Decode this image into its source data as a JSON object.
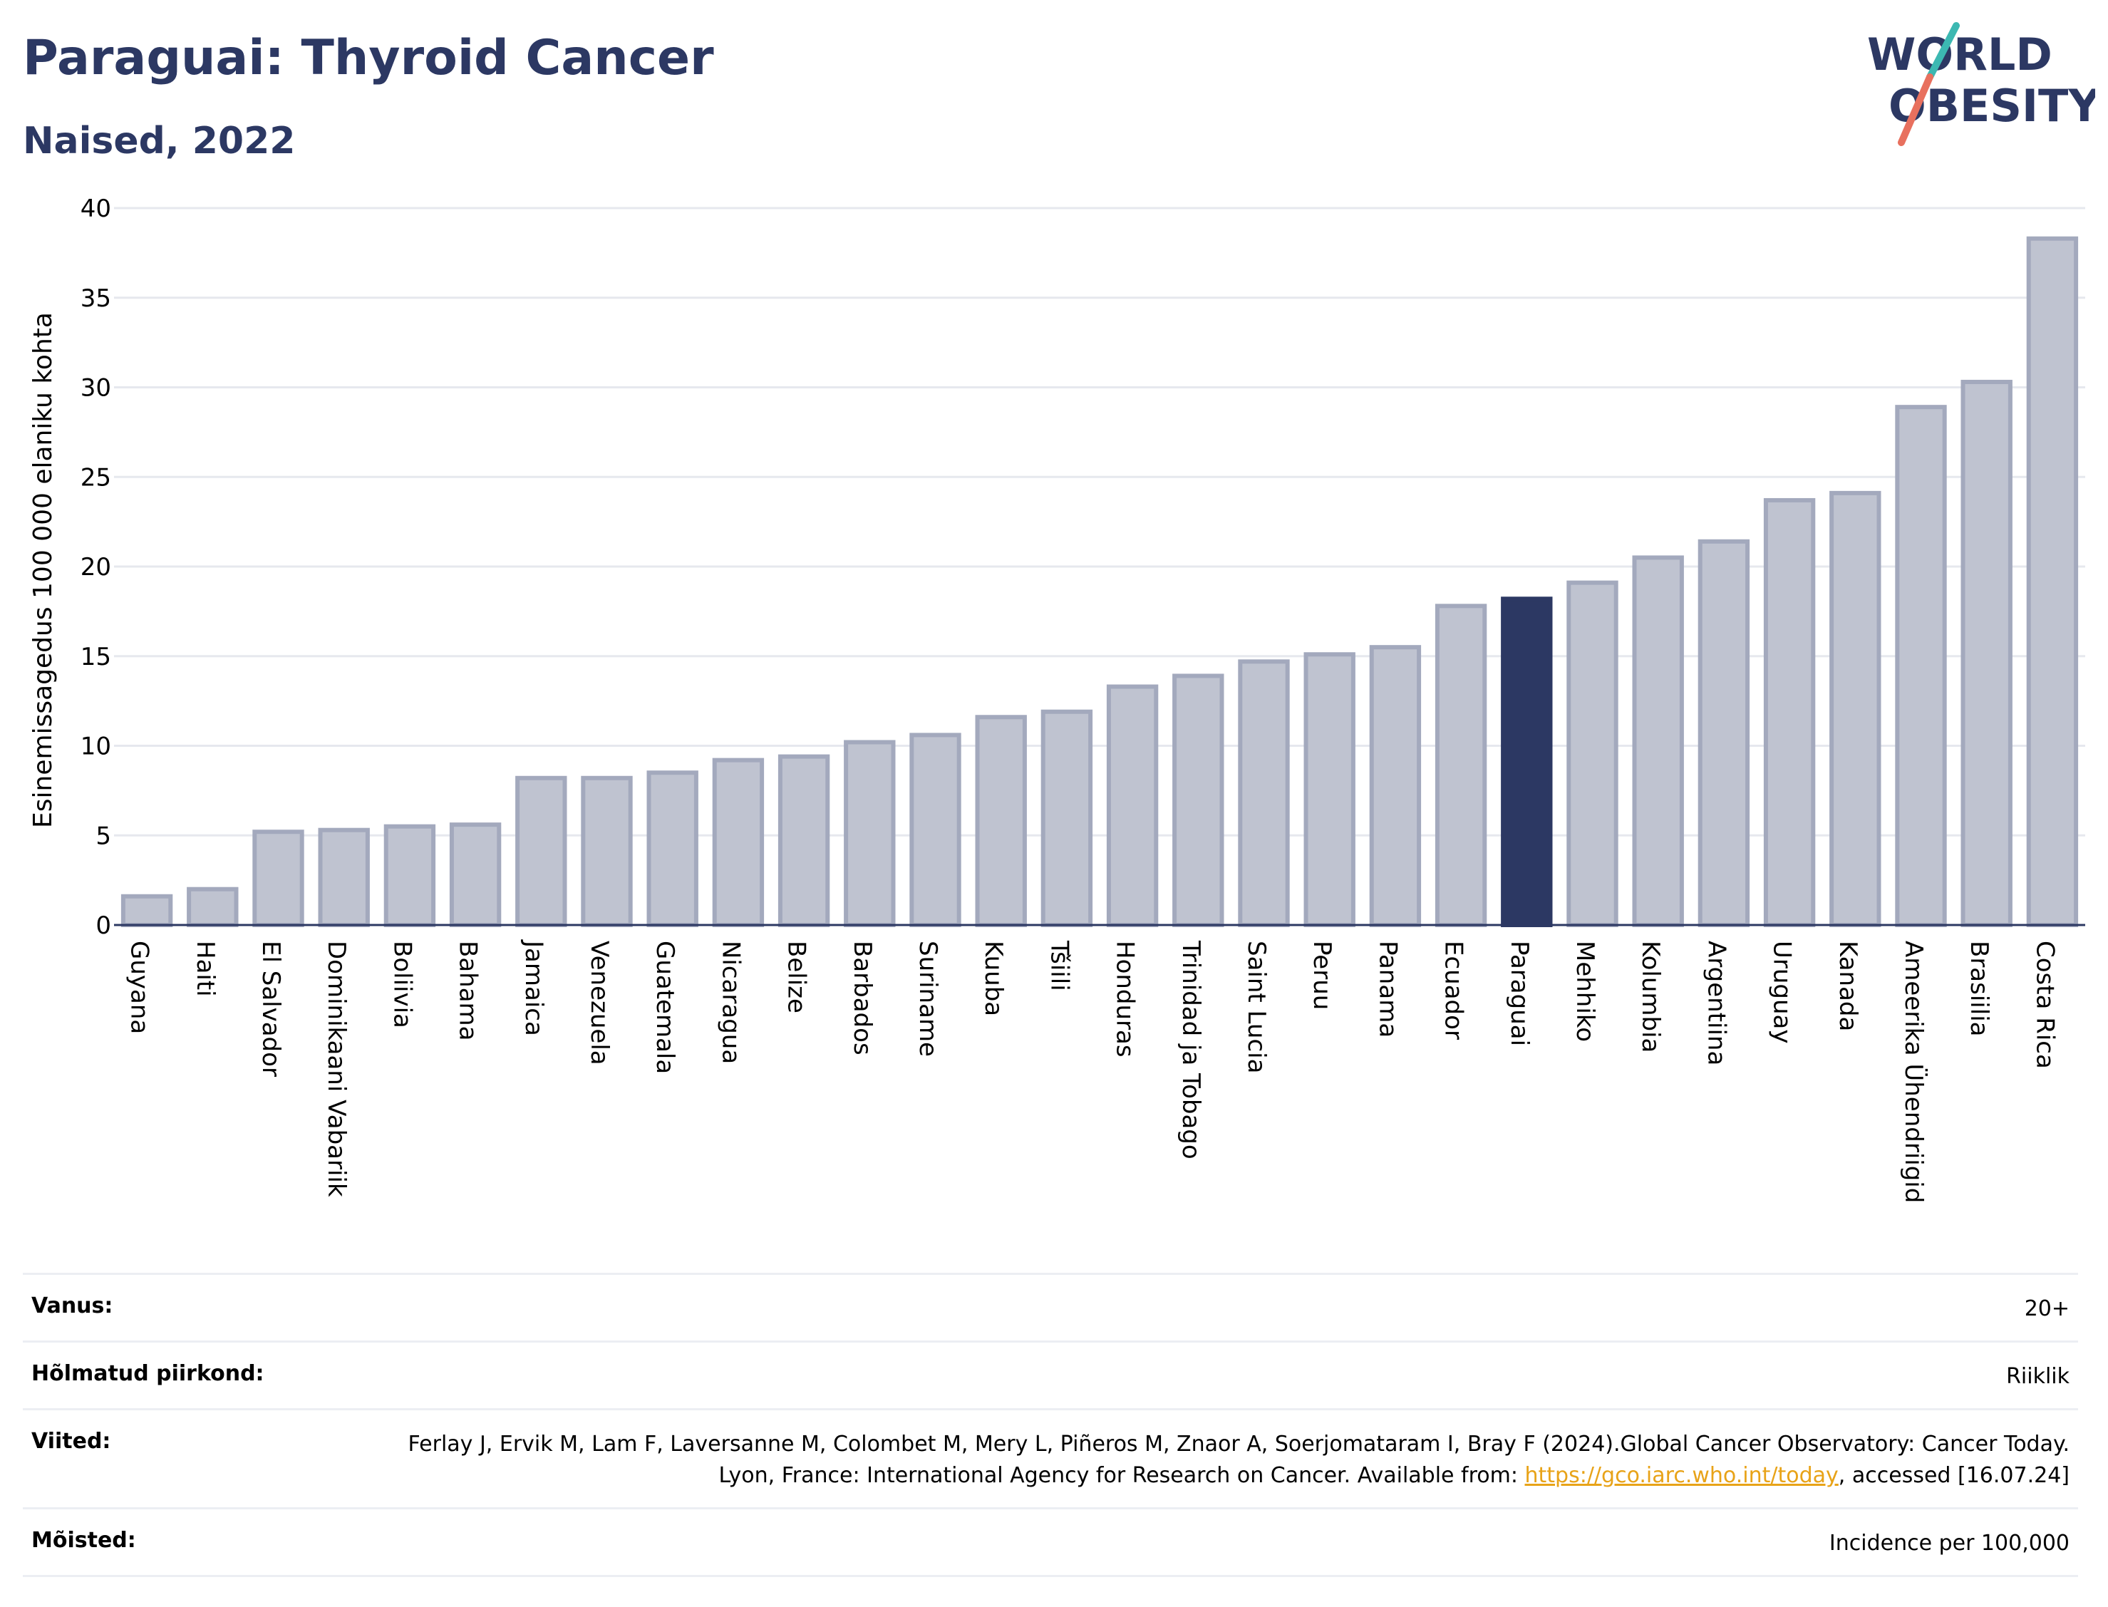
{
  "header": {
    "title": "Paraguai: Thyroid Cancer",
    "subtitle": "Naised, 2022",
    "logo_line1": "WORLD",
    "logo_line2": "OBESITY"
  },
  "colors": {
    "title": "#2c3863",
    "bar_default": "#bfc3d0",
    "bar_default_border": "#a3a9bd",
    "bar_highlight": "#2c3863",
    "link": "#e8a318",
    "logo_teal": "#3cb8b2",
    "logo_coral": "#e8705e"
  },
  "chart_data": {
    "type": "bar",
    "ylabel": "Esinemissagedus 100 000 elaniku kohta",
    "xlabel": "",
    "ylim": [
      0,
      40
    ],
    "yticks": [
      0,
      5,
      10,
      15,
      20,
      25,
      30,
      35,
      40
    ],
    "grid": true,
    "highlight": "Paraguai",
    "categories": [
      "Guyana",
      "Haiti",
      "El Salvador",
      "Dominikaani Vabariik",
      "Boliivia",
      "Bahama",
      "Jamaica",
      "Venezuela",
      "Guatemala",
      "Nicaragua",
      "Belize",
      "Barbados",
      "Suriname",
      "Kuuba",
      "Tšiili",
      "Honduras",
      "Trinidad ja Tobago",
      "Saint Lucia",
      "Peruu",
      "Panama",
      "Ecuador",
      "Paraguai",
      "Mehhiko",
      "Kolumbia",
      "Argentiina",
      "Uruguay",
      "Kanada",
      "Ameerika Ühendriigid",
      "Brasiilia",
      "Costa Rica"
    ],
    "values": [
      1.6,
      2.0,
      5.2,
      5.3,
      5.5,
      5.6,
      8.2,
      8.2,
      8.5,
      9.2,
      9.4,
      10.2,
      10.6,
      11.6,
      11.9,
      13.3,
      13.9,
      14.7,
      15.1,
      15.5,
      17.8,
      18.2,
      19.1,
      20.5,
      21.4,
      23.7,
      24.1,
      28.9,
      30.3,
      38.3
    ]
  },
  "info": {
    "rows": [
      {
        "label": "Vanus:",
        "value": "20+"
      },
      {
        "label": "Hõlmatud piirkond:",
        "value": "Riiklik"
      },
      {
        "label": "Viited:",
        "value_pre": "Ferlay J, Ervik M, Lam F, Laversanne M, Colombet M, Mery L, Piñeros M, Znaor A, Soerjomataram I, Bray F (2024).Global Cancer Observatory: Cancer Today. Lyon, France: International Agency for Research on Cancer. Available from: ",
        "value_link": "https://gco.iarc.who.int/today",
        "value_post": ", accessed [16.07.24]"
      },
      {
        "label": "Mõisted:",
        "value": "Incidence per 100,000"
      }
    ]
  }
}
